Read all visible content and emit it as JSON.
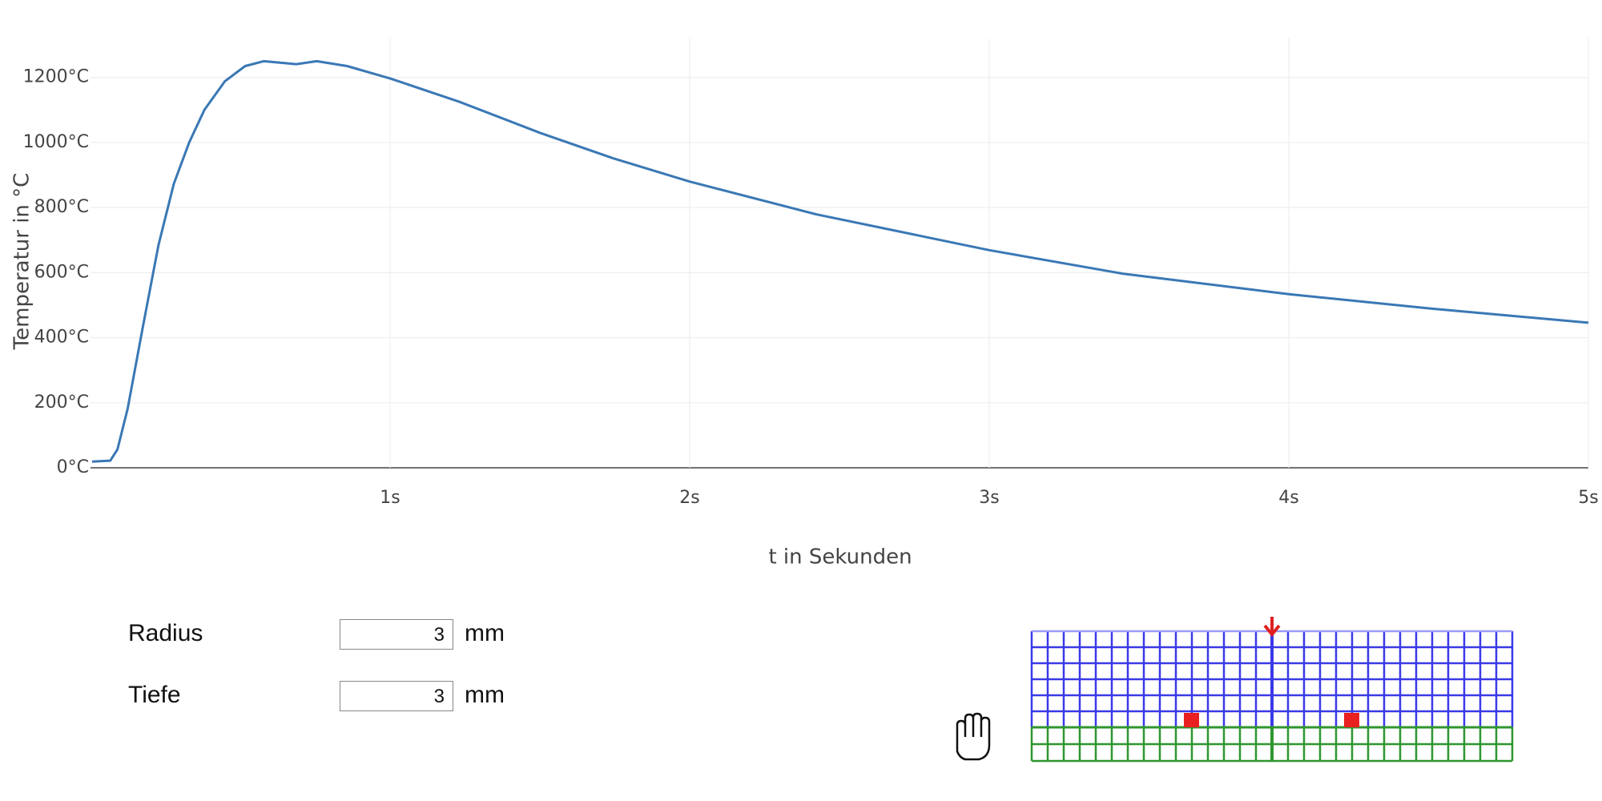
{
  "chart_data": {
    "type": "line",
    "x_label": "t in Sekunden",
    "y_label": "Temperatur in °C",
    "x": [
      0.005,
      0.066,
      0.09,
      0.124,
      0.175,
      0.227,
      0.278,
      0.329,
      0.38,
      0.448,
      0.516,
      0.578,
      0.687,
      0.755,
      0.857,
      1.0,
      1.232,
      1.5,
      1.743,
      2.0,
      2.424,
      3.0,
      3.445,
      4.0,
      4.468,
      5.0
    ],
    "values": [
      19,
      22,
      57,
      182,
      434,
      685,
      873,
      999,
      1100,
      1188,
      1235,
      1250,
      1241,
      1250,
      1235,
      1197,
      1125,
      1030,
      952,
      880,
      779,
      669,
      597,
      534,
      490,
      446
    ],
    "color": "#3a78b5",
    "xlim": [
      0,
      5
    ],
    "xticks": [
      {
        "value": 1,
        "label": "1s"
      },
      {
        "value": 2,
        "label": "2s"
      },
      {
        "value": 3,
        "label": "3s"
      },
      {
        "value": 4,
        "label": "4s"
      },
      {
        "value": 5,
        "label": "5s"
      }
    ],
    "ylim": [
      0,
      1320
    ],
    "yticks": [
      {
        "value": 0,
        "label": "0°C"
      },
      {
        "value": 200,
        "label": "200°C"
      },
      {
        "value": 400,
        "label": "400°C"
      },
      {
        "value": 600,
        "label": "600°C"
      },
      {
        "value": 800,
        "label": "800°C"
      },
      {
        "value": 1000,
        "label": "1000°C"
      },
      {
        "value": 1200,
        "label": "1200°C"
      }
    ],
    "grid": true
  },
  "form": {
    "fields": [
      {
        "label": "Radius",
        "value": "3",
        "unit": "mm"
      },
      {
        "label": "Tiefe",
        "value": "3",
        "unit": "mm"
      }
    ]
  }
}
